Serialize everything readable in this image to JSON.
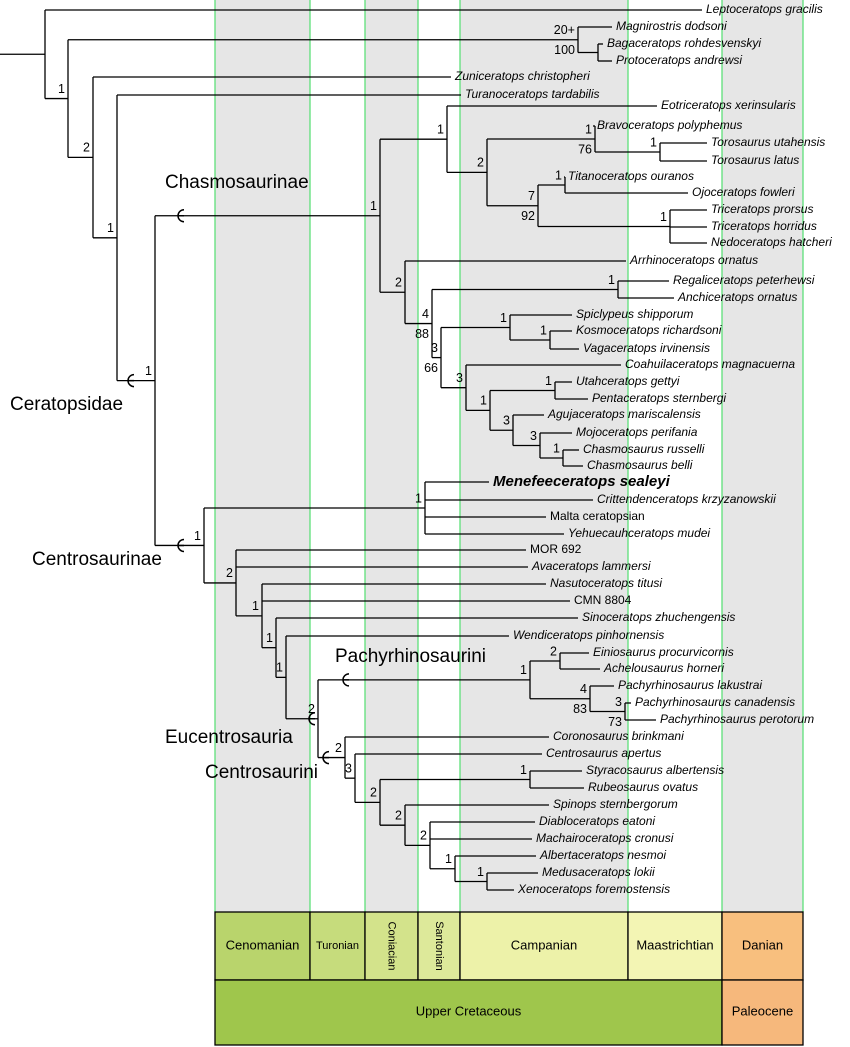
{
  "taxa": [
    "Leptoceratops gracilis",
    "Magnirostris dodsoni",
    "Bagaceratops rohdesvenskyi",
    "Protoceratops andrewsi",
    "Zuniceratops christopheri",
    "Turanoceratops tardabilis",
    "Eotriceratops xerinsularis",
    "Bravoceratops polyphemus",
    "Torosaurus utahensis",
    "Torosaurus latus",
    "Titanoceratops ouranos",
    "Ojoceratops fowleri",
    "Triceratops prorsus",
    "Triceratops horridus",
    "Nedoceratops hatcheri",
    "Arrhinoceratops ornatus",
    "Regaliceratops peterhewsi",
    "Anchiceratops ornatus",
    "Spiclypeus shipporum",
    "Kosmoceratops richardsoni",
    "Vagaceratops irvinensis",
    "Coahuilaceratops magnacuerna",
    "Utahceratops gettyi",
    "Pentaceratops sternbergi",
    "Agujaceratops mariscalensis",
    "Mojoceratops perifania",
    "Chasmosaurus russelli",
    "Chasmosaurus belli",
    "Menefeeceratops sealeyi",
    "Crittendenceratops krzyzanowskii",
    "Malta ceratopsian",
    "Yehuecauhceratops mudei",
    "MOR 692",
    "Avaceratops lammersi",
    "Nasutoceratops titusi",
    "CMN 8804",
    "Sinoceratops zhuchengensis",
    "Wendiceratops pinhornensis",
    "Einiosaurus procurvicornis",
    "Achelousaurus horneri",
    "Pachyrhinosaurus lakustrai",
    "Pachyrhinosaurus canadensis",
    "Pachyrhinosaurus perotorum",
    "Coronosaurus brinkmani",
    "Centrosaurus apertus",
    "Styracosaurus albertensis",
    "Rubeosaurus ovatus",
    "Spinops sternbergorum",
    "Diabloceratops eatoni",
    "Machairoceratops cronusi",
    "Albertaceratops nesmoi",
    "Medusaceratops lokii",
    "Xenoceratops foremostensis"
  ],
  "node_labels": [
    [
      "20+",
      "100"
    ],
    [
      "1"
    ],
    [
      "1",
      "76"
    ],
    [
      "1"
    ],
    [
      "1"
    ],
    [
      "7",
      "92"
    ],
    [
      "2"
    ],
    [
      "1"
    ],
    [
      "1"
    ],
    [
      "1"
    ],
    [
      "1"
    ],
    [
      "1"
    ],
    [
      "1"
    ],
    [
      "3"
    ],
    [
      "3"
    ],
    [
      "1"
    ],
    [
      "3"
    ],
    [
      "3",
      "66"
    ],
    [
      "4",
      "88"
    ],
    [
      "2"
    ],
    [
      "1"
    ],
    [
      "1"
    ],
    [
      "2"
    ],
    [
      "3",
      "73"
    ],
    [
      "4",
      "83"
    ],
    [
      "1"
    ],
    [
      "1"
    ],
    [
      "1"
    ],
    [
      "1"
    ],
    [
      "2"
    ],
    [
      "2"
    ],
    [
      "2"
    ],
    [
      "3"
    ],
    [
      "2"
    ],
    [
      "2"
    ],
    [
      "1"
    ],
    [
      "1"
    ],
    [
      "1"
    ],
    [
      "2"
    ],
    [
      "1"
    ],
    [
      "1"
    ],
    [
      "1"
    ],
    [
      "2"
    ],
    [
      "1"
    ]
  ],
  "clades": [
    "Chasmosaurinae",
    "Ceratopsidae",
    "Centrosaurinae",
    "Pachyrhinosaurini",
    "Eucentrosauria",
    "Centrosaurini"
  ],
  "stages": [
    "Cenomanian",
    "Turonian",
    "Coniacian",
    "Santonian",
    "Campanian",
    "Maastrichtian",
    "Danian"
  ],
  "epochs": [
    "Upper Cretaceous",
    "Paleocene"
  ]
}
